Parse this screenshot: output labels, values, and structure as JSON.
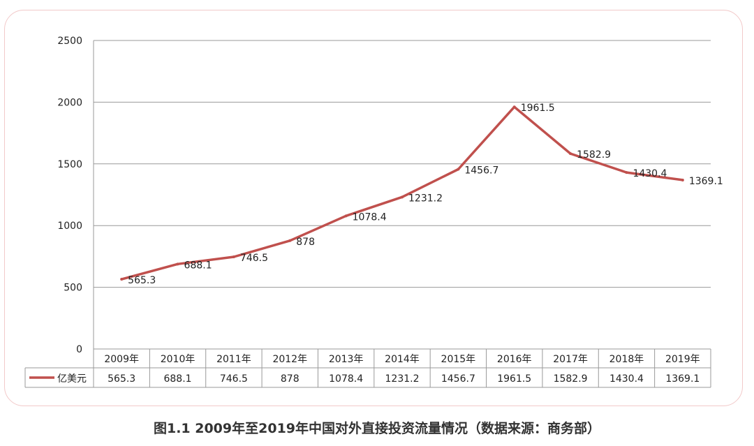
{
  "chart_data": {
    "type": "line",
    "categories": [
      "2009年",
      "2010年",
      "2011年",
      "2012年",
      "2013年",
      "2014年",
      "2015年",
      "2016年",
      "2017年",
      "2018年",
      "2019年"
    ],
    "series": [
      {
        "name": "亿美元",
        "values": [
          565.3,
          688.1,
          746.5,
          878,
          1078.4,
          1231.2,
          1456.7,
          1961.5,
          1582.9,
          1430.4,
          1369.1
        ],
        "labels": [
          "565.3",
          "688.1",
          "746.5",
          "878",
          "1078.4",
          "1231.2",
          "1456.7",
          "1961.5",
          "1582.9",
          "1430.4",
          "1369.1"
        ],
        "color": "#c0504d"
      }
    ],
    "yticks": [
      "0",
      "500",
      "1000",
      "1500",
      "2000",
      "2500"
    ],
    "ylim": [
      0,
      2500
    ],
    "grid": true,
    "legend": "data-table",
    "data_table": true
  },
  "caption": "图1.1 2009年至2019年中国对外直接投资流量情况（数据来源：商务部）",
  "colors": {
    "line": "#c0504d",
    "grid": "#999999",
    "frame": "#f2c9c9"
  }
}
